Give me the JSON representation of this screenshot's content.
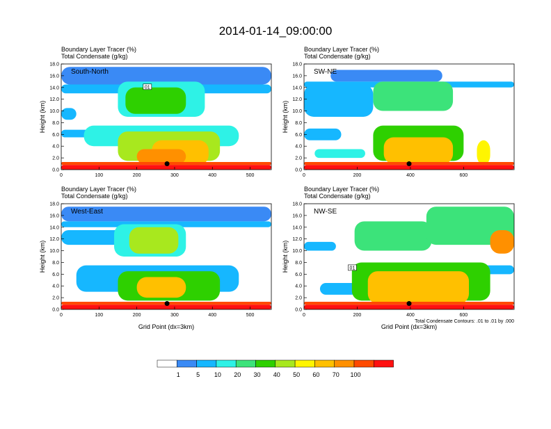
{
  "title": "2014-01-14_09:00:00",
  "subtitle_line1": "Boundary Layer Tracer   (%)",
  "subtitle_line2": "Total Condensate   (g/kg)",
  "y_axis_label": "Height (km)",
  "x_axis_label": "Grid Point (dx=3km)",
  "contour_note": "Total Condensate Contours: .01 to .01 by .000",
  "colors": {
    "palette": [
      "#ffffff",
      "#3a8af5",
      "#16b7ff",
      "#2ef2e6",
      "#3ce37a",
      "#2ed000",
      "#a8e81e",
      "#fff500",
      "#ffc000",
      "#ff9000",
      "#ff4a00",
      "#ff1010"
    ],
    "marker": "#000000",
    "contour": "#000000"
  },
  "colorbar": {
    "labels": [
      "1",
      "5",
      "10",
      "20",
      "30",
      "40",
      "50",
      "60",
      "70",
      "100"
    ]
  },
  "chart_data": [
    {
      "type": "heatmap",
      "panel_label": "South-North",
      "subtitle_line1": "Boundary Layer Tracer   (%)",
      "subtitle_line2": "Total Condensate   (g/kg)",
      "xlim": [
        0,
        556
      ],
      "ylim": [
        0,
        18
      ],
      "x_ticks": [
        "0",
        "100",
        "200",
        "300",
        "400",
        "500"
      ],
      "y_ticks": [
        "0.0",
        "2.0",
        "4.0",
        "6.0",
        "8.0",
        "10.0",
        "12.0",
        "14.0",
        "16.0",
        "18.0"
      ],
      "contour_label": "01",
      "marker": {
        "x": 280,
        "y": 1.0
      },
      "features": [
        {
          "x": [
            0,
            556
          ],
          "y": [
            0,
            0.8
          ],
          "level": 11
        },
        {
          "x": [
            0,
            556
          ],
          "y": [
            0.8,
            1.3
          ],
          "level": 10
        },
        {
          "x": [
            240,
            390
          ],
          "y": [
            0.8,
            5.0
          ],
          "level": 8
        },
        {
          "x": [
            200,
            330
          ],
          "y": [
            1.0,
            3.5
          ],
          "level": 9
        },
        {
          "x": [
            150,
            420
          ],
          "y": [
            1.5,
            6.5
          ],
          "level": 6
        },
        {
          "x": [
            60,
            470
          ],
          "y": [
            4.0,
            7.5
          ],
          "level": 3
        },
        {
          "x": [
            170,
            330
          ],
          "y": [
            9.5,
            14.0
          ],
          "level": 5
        },
        {
          "x": [
            150,
            380
          ],
          "y": [
            9.0,
            15.0
          ],
          "level": 3
        },
        {
          "x": [
            0,
            556
          ],
          "y": [
            13.0,
            14.5
          ],
          "level": 2
        },
        {
          "x": [
            0,
            170
          ],
          "y": [
            5.5,
            6.8
          ],
          "level": 2
        },
        {
          "x": [
            0,
            40
          ],
          "y": [
            8.5,
            10.5
          ],
          "level": 2
        },
        {
          "x": [
            0,
            556
          ],
          "y": [
            14.5,
            17.5
          ],
          "level": 1
        }
      ]
    },
    {
      "type": "heatmap",
      "panel_label": "SW-NE",
      "subtitle_line1": "Boundary Layer Tracer   (%)",
      "subtitle_line2": "Total Condensate   (g/kg)",
      "xlim": [
        0,
        790
      ],
      "ylim": [
        0,
        18
      ],
      "x_ticks": [
        "0",
        "200",
        "400",
        "600"
      ],
      "y_ticks": [
        "0.0",
        "2.0",
        "4.0",
        "6.0",
        "8.0",
        "10.0",
        "12.0",
        "14.0",
        "16.0",
        "18.0"
      ],
      "marker": {
        "x": 395,
        "y": 1.0
      },
      "features": [
        {
          "x": [
            0,
            790
          ],
          "y": [
            0,
            0.8
          ],
          "level": 11
        },
        {
          "x": [
            0,
            790
          ],
          "y": [
            0.8,
            1.3
          ],
          "level": 10
        },
        {
          "x": [
            300,
            560
          ],
          "y": [
            1.0,
            5.5
          ],
          "level": 8
        },
        {
          "x": [
            260,
            600
          ],
          "y": [
            1.5,
            7.5
          ],
          "level": 5
        },
        {
          "x": [
            650,
            700
          ],
          "y": [
            0.8,
            5.0
          ],
          "level": 7
        },
        {
          "x": [
            260,
            560
          ],
          "y": [
            10.0,
            15.0
          ],
          "level": 4
        },
        {
          "x": [
            0,
            260
          ],
          "y": [
            9.0,
            14.5
          ],
          "level": 2
        },
        {
          "x": [
            0,
            790
          ],
          "y": [
            14.0,
            15.0
          ],
          "level": 2
        },
        {
          "x": [
            100,
            520
          ],
          "y": [
            15.0,
            17.0
          ],
          "level": 1
        },
        {
          "x": [
            0,
            140
          ],
          "y": [
            5.0,
            7.0
          ],
          "level": 2
        },
        {
          "x": [
            40,
            230
          ],
          "y": [
            2.0,
            3.5
          ],
          "level": 3
        }
      ]
    },
    {
      "type": "heatmap",
      "panel_label": "West-East",
      "subtitle_line1": "Boundary Layer Tracer   (%)",
      "subtitle_line2": "Total Condensate   (g/kg)",
      "xlim": [
        0,
        556
      ],
      "ylim": [
        0,
        18
      ],
      "x_ticks": [
        "0",
        "100",
        "200",
        "300",
        "400",
        "500"
      ],
      "y_ticks": [
        "0.0",
        "2.0",
        "4.0",
        "6.0",
        "8.0",
        "10.0",
        "12.0",
        "14.0",
        "16.0",
        "18.0"
      ],
      "marker": {
        "x": 280,
        "y": 1.0
      },
      "features": [
        {
          "x": [
            0,
            556
          ],
          "y": [
            0,
            0.8
          ],
          "level": 11
        },
        {
          "x": [
            0,
            556
          ],
          "y": [
            0.8,
            1.3
          ],
          "level": 10
        },
        {
          "x": [
            200,
            330
          ],
          "y": [
            2.0,
            5.5
          ],
          "level": 8
        },
        {
          "x": [
            150,
            420
          ],
          "y": [
            1.5,
            6.5
          ],
          "level": 5
        },
        {
          "x": [
            40,
            470
          ],
          "y": [
            3.0,
            7.5
          ],
          "level": 2
        },
        {
          "x": [
            180,
            310
          ],
          "y": [
            9.5,
            14.0
          ],
          "level": 6
        },
        {
          "x": [
            140,
            330
          ],
          "y": [
            9.0,
            14.5
          ],
          "level": 3
        },
        {
          "x": [
            0,
            220
          ],
          "y": [
            11.0,
            13.5
          ],
          "level": 2
        },
        {
          "x": [
            0,
            556
          ],
          "y": [
            15.0,
            17.5
          ],
          "level": 1
        },
        {
          "x": [
            0,
            556
          ],
          "y": [
            14.0,
            15.0
          ],
          "level": 2
        }
      ]
    },
    {
      "type": "heatmap",
      "panel_label": "NW-SE",
      "subtitle_line1": "Boundary Layer Tracer   (%)",
      "subtitle_line2": "Total Condensate   (g/kg)",
      "xlim": [
        0,
        790
      ],
      "ylim": [
        0,
        18
      ],
      "x_ticks": [
        "0",
        "200",
        "400",
        "600"
      ],
      "y_ticks": [
        "0.0",
        "2.0",
        "4.0",
        "6.0",
        "8.0",
        "10.0",
        "12.0",
        "14.0",
        "16.0",
        "18.0"
      ],
      "contour_label": "01",
      "marker": {
        "x": 395,
        "y": 1.0
      },
      "features": [
        {
          "x": [
            0,
            790
          ],
          "y": [
            0,
            0.8
          ],
          "level": 11
        },
        {
          "x": [
            0,
            790
          ],
          "y": [
            0.8,
            1.3
          ],
          "level": 10
        },
        {
          "x": [
            240,
            620
          ],
          "y": [
            1.0,
            6.5
          ],
          "level": 8
        },
        {
          "x": [
            180,
            700
          ],
          "y": [
            1.5,
            8.0
          ],
          "level": 5
        },
        {
          "x": [
            60,
            200
          ],
          "y": [
            2.5,
            4.5
          ],
          "level": 2
        },
        {
          "x": [
            190,
            480
          ],
          "y": [
            10.0,
            15.0
          ],
          "level": 4
        },
        {
          "x": [
            460,
            790
          ],
          "y": [
            11.0,
            17.5
          ],
          "level": 4
        },
        {
          "x": [
            700,
            790
          ],
          "y": [
            9.5,
            13.5
          ],
          "level": 9
        },
        {
          "x": [
            0,
            120
          ],
          "y": [
            10.0,
            11.5
          ],
          "level": 2
        },
        {
          "x": [
            380,
            790
          ],
          "y": [
            6.0,
            7.5
          ],
          "level": 2
        }
      ]
    }
  ]
}
